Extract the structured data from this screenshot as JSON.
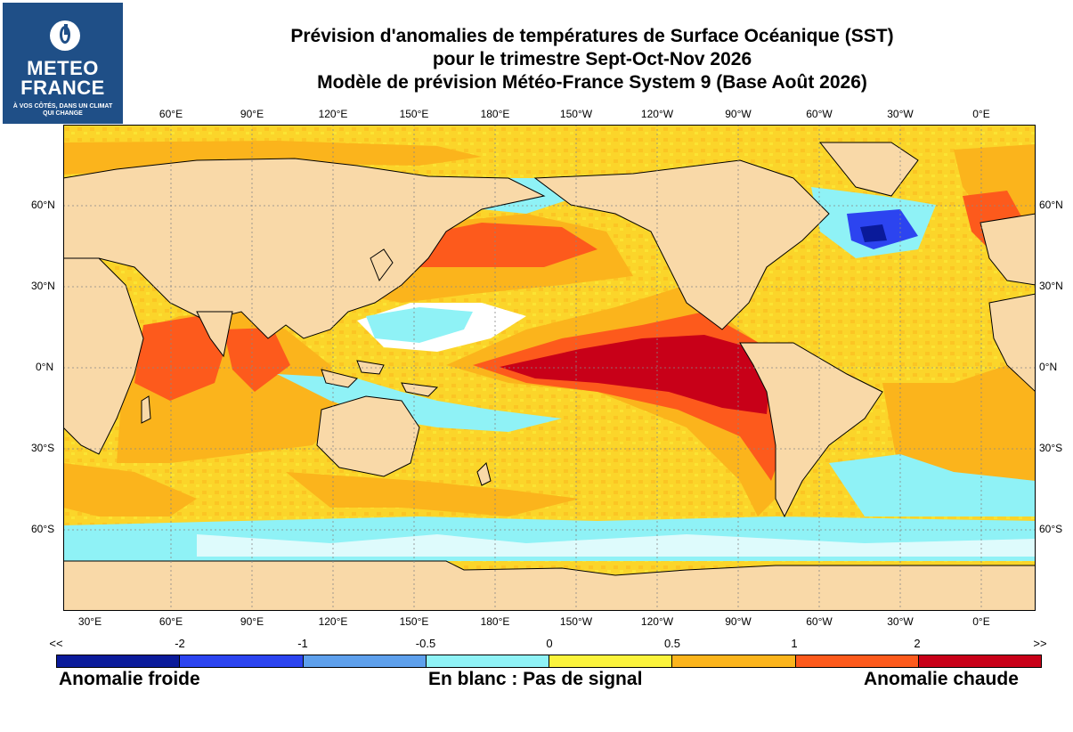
{
  "logo": {
    "line1": "METEO",
    "line2": "FRANCE",
    "tagline": "À VOS CÔTÉS, DANS UN CLIMAT QUI CHANGE"
  },
  "title": {
    "line1": "Prévision d'anomalies de températures de Surface Océanique (SST)",
    "line2": "pour le trimestre Sept-Oct-Nov 2026",
    "line3": "Modèle de prévision Météo-France System 9 (Base Août 2026)"
  },
  "map": {
    "top_lon_labels": [
      "60°E",
      "90°E",
      "120°E",
      "150°E",
      "180°E",
      "150°W",
      "120°W",
      "90°W",
      "60°W",
      "30°W",
      "0°E"
    ],
    "bottom_lon_labels": [
      "30°E",
      "60°E",
      "90°E",
      "120°E",
      "150°E",
      "180°E",
      "150°W",
      "120°W",
      "90°W",
      "60°W",
      "30°W",
      "0°E"
    ],
    "lat_labels": [
      "60°N",
      "30°N",
      "0°N",
      "30°S",
      "60°S"
    ],
    "colors": {
      "land": "#f9d9a8",
      "no_signal": "#ffffff",
      "outline": "#000000"
    }
  },
  "colorbar": {
    "tick_labels": [
      "<<",
      "-2",
      "-1",
      "-0.5",
      "0",
      "0.5",
      "1",
      "2",
      ">>"
    ],
    "colors": [
      "#0a1a9a",
      "#2c44f0",
      "#5ea0ec",
      "#8ff2f6",
      "#fbf33c",
      "#fbb41c",
      "#fd5a1c",
      "#c80018"
    ],
    "label_cold": "Anomalie froide",
    "label_none": "En blanc : Pas de signal",
    "label_warm": "Anomalie chaude"
  }
}
